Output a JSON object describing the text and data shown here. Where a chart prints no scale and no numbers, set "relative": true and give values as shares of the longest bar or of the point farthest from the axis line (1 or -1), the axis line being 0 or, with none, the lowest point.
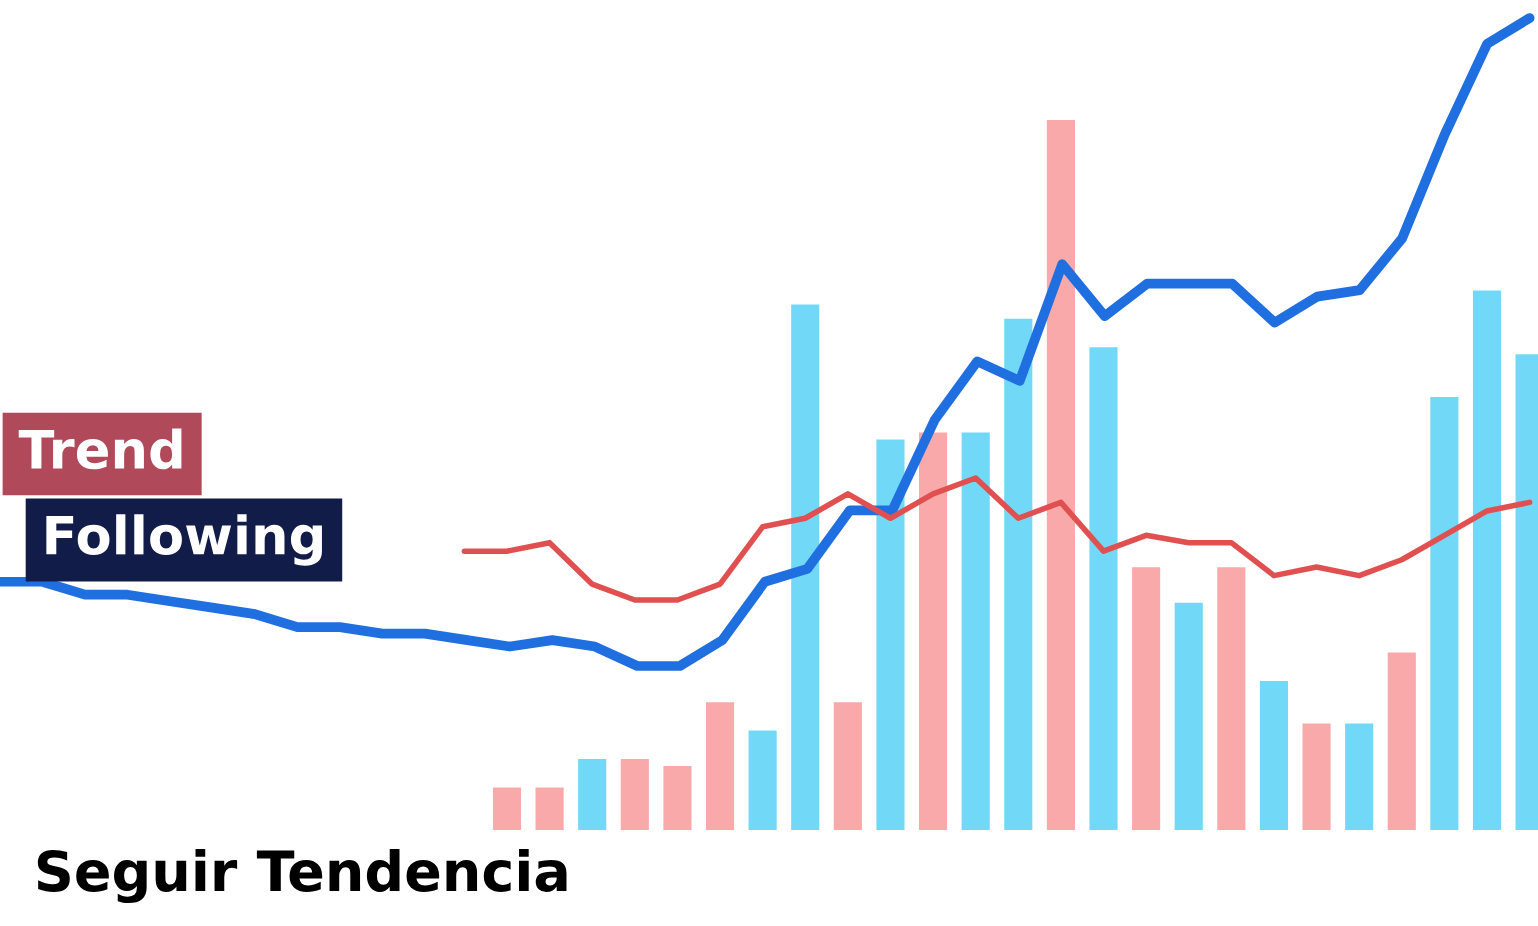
{
  "chart_data": [
    {
      "type": "bar",
      "relative": true,
      "legend": false,
      "categories": [
        null,
        null,
        null,
        null,
        null,
        null,
        null,
        null,
        null,
        null,
        null,
        null,
        null,
        null,
        null,
        null,
        null,
        null,
        null,
        null,
        null,
        null,
        null,
        null,
        null
      ],
      "values": [
        0.06,
        0.06,
        0.1,
        0.1,
        0.09,
        0.18,
        0.14,
        0.74,
        0.18,
        0.55,
        0.56,
        0.56,
        0.72,
        1.0,
        0.68,
        0.37,
        0.32,
        0.37,
        0.21,
        0.15,
        0.15,
        0.25,
        0.61,
        0.76,
        0.67
      ],
      "colors": [
        "#f9a9a9",
        "#f9a9a9",
        "#72d8f7",
        "#f9a9a9",
        "#f9a9a9",
        "#f9a9a9",
        "#72d8f7",
        "#72d8f7",
        "#f9a9a9",
        "#72d8f7",
        "#f9a9a9",
        "#72d8f7",
        "#72d8f7",
        "#f9a9a9",
        "#72d8f7",
        "#f9a9a9",
        "#72d8f7",
        "#f9a9a9",
        "#72d8f7",
        "#f9a9a9",
        "#72d8f7",
        "#f9a9a9",
        "#72d8f7",
        "#72d8f7",
        "#72d8f7"
      ],
      "annotations": [
        "Trend",
        "Following",
        "Seguir Tendencia"
      ]
    },
    {
      "type": "line",
      "relative": true,
      "legend": false,
      "categories": [
        null,
        null,
        null,
        null,
        null,
        null,
        null,
        null,
        null,
        null,
        null,
        null,
        null,
        null,
        null,
        null,
        null,
        null,
        null,
        null,
        null,
        null,
        null,
        null,
        null,
        null,
        null,
        null,
        null,
        null,
        null,
        null,
        null,
        null,
        null,
        null,
        null
      ],
      "series": [
        {
          "color": "#1f6fe0",
          "values": [
            0.13,
            0.13,
            0.11,
            0.11,
            0.1,
            0.09,
            0.08,
            0.06,
            0.06,
            0.05,
            0.05,
            0.04,
            0.03,
            0.04,
            0.03,
            0,
            0,
            0.04,
            0.13,
            0.15,
            0.24,
            0.24,
            0.38,
            0.47,
            0.44,
            0.62,
            0.54,
            0.59,
            0.59,
            0.59,
            0.53,
            0.57,
            0.58,
            0.66,
            0.82,
            0.96,
            1
          ]
        }
      ]
    },
    {
      "type": "line",
      "relative": true,
      "legend": false,
      "categories": [
        null,
        null,
        null,
        null,
        null,
        null,
        null,
        null,
        null,
        null,
        null,
        null,
        null,
        null,
        null,
        null,
        null,
        null,
        null,
        null,
        null,
        null,
        null,
        null,
        null,
        null
      ],
      "series": [
        {
          "color": "#e05050",
          "values": [
            0.4,
            0.4,
            0.47,
            0.13,
            0,
            0,
            0.13,
            0.6,
            0.67,
            0.87,
            0.67,
            0.87,
            1,
            0.67,
            0.8,
            0.4,
            0.53,
            0.47,
            0.47,
            0.2,
            0.27,
            0.2,
            0.33,
            0.53,
            0.73,
            0.8
          ]
        }
      ]
    }
  ]
}
